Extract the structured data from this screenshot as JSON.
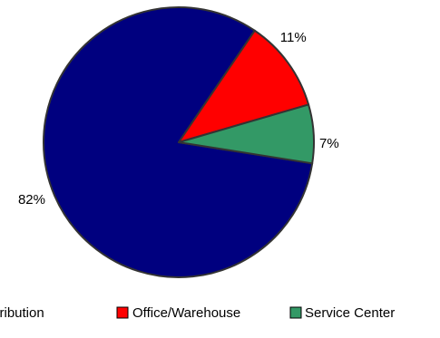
{
  "chart_data": {
    "type": "pie",
    "title": "",
    "slices": [
      {
        "name": "k Distribution",
        "value": 82,
        "label": "82%",
        "color": "#00007f"
      },
      {
        "name": "Office/Warehouse",
        "value": 11,
        "label": "11%",
        "color": "#ff0000"
      },
      {
        "name": "Service Center",
        "value": 7,
        "label": "7%",
        "color": "#339966"
      }
    ],
    "legend_placement": "bottom",
    "outline_color": "#333333"
  }
}
